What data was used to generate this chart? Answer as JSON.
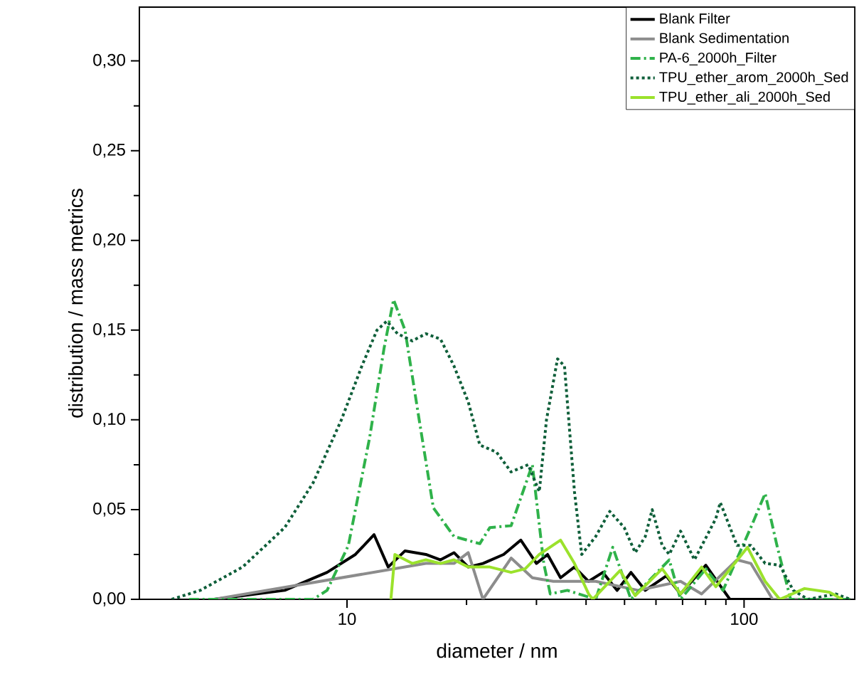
{
  "chart_data": {
    "type": "line",
    "xlabel": "diameter / nm",
    "ylabel": "distribution / mass metrics",
    "log": "x",
    "xlim": [
      3,
      190
    ],
    "ylim": [
      0,
      0.33
    ],
    "xticks": [
      10,
      100
    ],
    "yticks": [
      {
        "value": 0,
        "label": "0,00"
      },
      {
        "value": 0.05,
        "label": "0,05"
      },
      {
        "value": 0.1,
        "label": "0,10"
      },
      {
        "value": 0.15,
        "label": "0,15"
      },
      {
        "value": 0.2,
        "label": "0,20"
      },
      {
        "value": 0.25,
        "label": "0,25"
      },
      {
        "value": 0.3,
        "label": "0,30"
      }
    ],
    "legend": "top right",
    "grid": false,
    "marker": "none",
    "series": [
      {
        "name": "Blank Filter",
        "color": "#000000",
        "line_style": "solid",
        "x": [
          4.63,
          6.97,
          8.91,
          10.5,
          11.7,
          12.7,
          14.0,
          15.8,
          17.2,
          18.6,
          20.2,
          22.0,
          24.8,
          27.4,
          30.0,
          32.0,
          34.5,
          37.4,
          40.6,
          44.1,
          47.9,
          51.9,
          56.4,
          63.7,
          69.2,
          80.1,
          92.1,
          185
        ],
        "values": [
          0,
          0.005,
          0.015,
          0.025,
          0.036,
          0.018,
          0.027,
          0.025,
          0.022,
          0.026,
          0.018,
          0.02,
          0.025,
          0.033,
          0.02,
          0.025,
          0.012,
          0.018,
          0.01,
          0.015,
          0.005,
          0.015,
          0.005,
          0.013,
          0.003,
          0.019,
          0,
          0
        ]
      },
      {
        "name": "Blank Sedimentation",
        "color": "#8c8c8c",
        "line_style": "solid",
        "x": [
          4.63,
          15.8,
          18.6,
          20.2,
          22.0,
          25.9,
          29.3,
          33.1,
          42.3,
          54.1,
          69.2,
          78.2,
          96.0,
          104,
          118,
          185
        ],
        "values": [
          0,
          0.02,
          0.02,
          0.026,
          0,
          0.023,
          0.012,
          0.01,
          0.01,
          0.005,
          0.01,
          0.003,
          0.022,
          0.02,
          0,
          0
        ]
      },
      {
        "name": "PA-6_2000h_Filter",
        "color": "#2fb24a",
        "line_style": "dashdot",
        "x": [
          4.0,
          8.22,
          8.91,
          10.08,
          11.4,
          12.4,
          13.1,
          14.0,
          15.2,
          16.5,
          18.6,
          21.6,
          22.9,
          25.9,
          29.3,
          31.3,
          32.5,
          35.9,
          42.3,
          46.7,
          51.9,
          64.8,
          69.2,
          80.1,
          88.5,
          104,
          113,
          121,
          131,
          185
        ],
        "values": [
          0,
          0,
          0.005,
          0.03,
          0.09,
          0.14,
          0.167,
          0.15,
          0.1,
          0.051,
          0.035,
          0.031,
          0.04,
          0.041,
          0.075,
          0.02,
          0.003,
          0.005,
          0,
          0.029,
          0,
          0.022,
          0,
          0.017,
          0.005,
          0.04,
          0.059,
          0.03,
          0,
          0
        ]
      },
      {
        "name": "TPU_ether_arom_2000h_Sed",
        "color": "#0f5f3a",
        "line_style": "dotted",
        "x": [
          3.62,
          4.27,
          5.46,
          6.97,
          8.22,
          9.68,
          10.9,
          11.9,
          12.6,
          13.4,
          14.6,
          15.8,
          17.2,
          18.6,
          20.2,
          21.6,
          23.8,
          25.9,
          28.6,
          30.5,
          31.8,
          33.9,
          35.3,
          37.4,
          39.0,
          42.3,
          45.9,
          49.9,
          53.2,
          56.4,
          58.7,
          62.2,
          64.8,
          69.2,
          75.0,
          84.9,
          87.1,
          96.0,
          104,
          113,
          123,
          133,
          145,
          170,
          185
        ],
        "values": [
          0,
          0.005,
          0.018,
          0.04,
          0.065,
          0.1,
          0.13,
          0.15,
          0.155,
          0.148,
          0.144,
          0.148,
          0.145,
          0.13,
          0.11,
          0.086,
          0.082,
          0.071,
          0.075,
          0.06,
          0.1,
          0.134,
          0.13,
          0.06,
          0.025,
          0.035,
          0.049,
          0.04,
          0.026,
          0.035,
          0.05,
          0.03,
          0.025,
          0.038,
          0.022,
          0.045,
          0.054,
          0.03,
          0.03,
          0.02,
          0.019,
          0.005,
          0,
          0.003,
          0
        ]
      },
      {
        "name": "TPU_ether_ali_2000h_Sed",
        "color": "#9be22c",
        "line_style": "solid",
        "x": [
          12.9,
          13.2,
          14.6,
          15.8,
          17.2,
          18.6,
          20.2,
          22.9,
          25.9,
          28.1,
          30.5,
          34.5,
          37.4,
          40.6,
          41.6,
          48.7,
          53.2,
          62.2,
          69.2,
          78.2,
          84.9,
          102,
          113,
          123,
          142,
          164,
          177
        ],
        "values": [
          0,
          0.025,
          0.02,
          0.022,
          0.02,
          0.022,
          0.018,
          0.018,
          0.015,
          0.017,
          0.025,
          0.033,
          0.02,
          0.003,
          0,
          0.016,
          0.002,
          0.017,
          0.003,
          0.018,
          0.007,
          0.029,
          0.01,
          0,
          0.006,
          0.004,
          0
        ]
      }
    ]
  }
}
